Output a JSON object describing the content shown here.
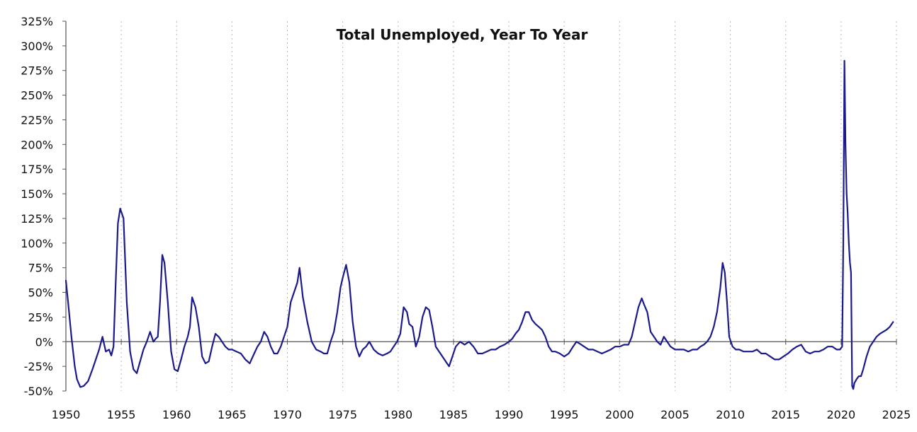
{
  "colors": {
    "series": "#1a1a8c",
    "axis": "#555555",
    "grid": "#b8b8b8",
    "text": "#111111"
  },
  "chart_data": {
    "type": "line",
    "title": "Total Unemployed, Year To Year",
    "xlabel": "",
    "ylabel": "",
    "xlim": [
      1950,
      2025
    ],
    "ylim": [
      -50,
      325
    ],
    "x_ticks": [
      1950,
      1955,
      1960,
      1965,
      1970,
      1975,
      1980,
      1985,
      1990,
      1995,
      2000,
      2005,
      2010,
      2015,
      2020,
      2025
    ],
    "x_tick_labels": [
      "1950",
      "1955",
      "1960",
      "1965",
      "1970",
      "1975",
      "1980",
      "1985",
      "1990",
      "1995",
      "2000",
      "2005",
      "2010",
      "2015",
      "2020",
      "2025"
    ],
    "y_ticks": [
      -50,
      -25,
      0,
      25,
      50,
      75,
      100,
      125,
      150,
      175,
      200,
      225,
      250,
      275,
      300,
      325
    ],
    "y_tick_labels": [
      "-50%",
      "-25%",
      "0%",
      "25%",
      "50%",
      "75%",
      "100%",
      "125%",
      "150%",
      "175%",
      "200%",
      "225%",
      "250%",
      "275%",
      "300%",
      "325%"
    ],
    "grid": {
      "vertical": true,
      "horizontal": false
    },
    "legend": "none",
    "series": [
      {
        "x": [
          1950.0,
          1950.2,
          1950.5,
          1950.8,
          1951.0,
          1951.3,
          1951.6,
          1952.0,
          1952.4,
          1952.7,
          1953.0,
          1953.3,
          1953.6,
          1953.9,
          1954.1,
          1954.3,
          1954.5,
          1954.7,
          1954.9,
          1955.2,
          1955.5,
          1955.8,
          1956.1,
          1956.4,
          1956.7,
          1957.0,
          1957.3,
          1957.6,
          1957.9,
          1958.1,
          1958.3,
          1958.5,
          1958.7,
          1958.9,
          1959.2,
          1959.5,
          1959.8,
          1960.1,
          1960.4,
          1960.7,
          1961.0,
          1961.2,
          1961.4,
          1961.7,
          1962.0,
          1962.3,
          1962.6,
          1962.9,
          1963.2,
          1963.5,
          1963.8,
          1964.1,
          1964.4,
          1964.7,
          1965.0,
          1965.4,
          1965.8,
          1966.2,
          1966.6,
          1967.0,
          1967.3,
          1967.6,
          1967.9,
          1968.2,
          1968.5,
          1968.8,
          1969.1,
          1969.4,
          1969.7,
          1970.0,
          1970.3,
          1970.6,
          1970.9,
          1971.1,
          1971.4,
          1971.8,
          1972.2,
          1972.6,
          1973.0,
          1973.3,
          1973.6,
          1973.9,
          1974.2,
          1974.5,
          1974.8,
          1975.0,
          1975.3,
          1975.6,
          1975.9,
          1976.2,
          1976.5,
          1976.8,
          1977.1,
          1977.4,
          1977.8,
          1978.2,
          1978.6,
          1979.0,
          1979.3,
          1979.6,
          1979.9,
          1980.2,
          1980.5,
          1980.8,
          1981.0,
          1981.3,
          1981.6,
          1981.9,
          1982.2,
          1982.5,
          1982.8,
          1983.1,
          1983.4,
          1983.7,
          1984.0,
          1984.3,
          1984.6,
          1984.9,
          1985.2,
          1985.6,
          1986.0,
          1986.4,
          1986.8,
          1987.2,
          1987.6,
          1988.0,
          1988.4,
          1988.8,
          1989.2,
          1989.6,
          1990.0,
          1990.3,
          1990.6,
          1990.9,
          1991.2,
          1991.5,
          1991.8,
          1992.1,
          1992.4,
          1992.7,
          1993.0,
          1993.3,
          1993.6,
          1993.9,
          1994.2,
          1994.6,
          1995.0,
          1995.4,
          1995.8,
          1996.1,
          1996.4,
          1996.8,
          1997.2,
          1997.6,
          1998.0,
          1998.4,
          1998.8,
          1999.2,
          1999.6,
          2000.0,
          2000.4,
          2000.8,
          2001.1,
          2001.4,
          2001.7,
          2002.0,
          2002.2,
          2002.5,
          2002.8,
          2003.1,
          2003.4,
          2003.7,
          2004.0,
          2004.3,
          2004.6,
          2005.0,
          2005.4,
          2005.8,
          2006.2,
          2006.6,
          2007.0,
          2007.3,
          2007.6,
          2007.9,
          2008.2,
          2008.5,
          2008.8,
          2009.1,
          2009.3,
          2009.5,
          2009.7,
          2009.9,
          2010.2,
          2010.5,
          2010.8,
          2011.2,
          2011.6,
          2012.0,
          2012.4,
          2012.8,
          2013.2,
          2013.6,
          2014.0,
          2014.4,
          2014.8,
          2015.2,
          2015.6,
          2016.0,
          2016.4,
          2016.8,
          2017.2,
          2017.6,
          2018.0,
          2018.4,
          2018.8,
          2019.2,
          2019.6,
          2019.9,
          2020.1,
          2020.2,
          2020.3,
          2020.4,
          2020.5,
          2020.6,
          2020.7,
          2020.8,
          2020.9,
          2021.0,
          2021.1,
          2021.2,
          2021.3,
          2021.4,
          2021.6,
          2021.8,
          2022.0,
          2022.3,
          2022.6,
          2022.9,
          2023.2,
          2023.5,
          2023.8,
          2024.1,
          2024.4,
          2024.7
        ],
        "values": [
          62,
          40,
          5,
          -25,
          -38,
          -46,
          -45,
          -40,
          -28,
          -18,
          -8,
          5,
          -10,
          -8,
          -14,
          -5,
          60,
          120,
          135,
          125,
          40,
          -10,
          -28,
          -32,
          -20,
          -8,
          0,
          10,
          0,
          3,
          5,
          40,
          88,
          80,
          40,
          -10,
          -28,
          -30,
          -18,
          -5,
          5,
          15,
          45,
          35,
          15,
          -15,
          -22,
          -20,
          -5,
          8,
          5,
          0,
          -5,
          -8,
          -8,
          -10,
          -12,
          -18,
          -22,
          -12,
          -5,
          0,
          10,
          5,
          -5,
          -12,
          -12,
          -5,
          5,
          15,
          40,
          50,
          60,
          75,
          45,
          20,
          0,
          -8,
          -10,
          -12,
          -12,
          0,
          10,
          30,
          55,
          65,
          78,
          60,
          20,
          -5,
          -15,
          -8,
          -5,
          0,
          -8,
          -12,
          -14,
          -12,
          -10,
          -5,
          0,
          8,
          35,
          30,
          18,
          15,
          -5,
          5,
          25,
          35,
          32,
          15,
          -5,
          -10,
          -15,
          -20,
          -25,
          -15,
          -5,
          0,
          -3,
          0,
          -5,
          -12,
          -12,
          -10,
          -8,
          -8,
          -5,
          -3,
          0,
          3,
          8,
          12,
          20,
          30,
          30,
          22,
          18,
          15,
          12,
          5,
          -5,
          -10,
          -10,
          -12,
          -15,
          -12,
          -5,
          0,
          -2,
          -5,
          -8,
          -8,
          -10,
          -12,
          -10,
          -8,
          -5,
          -5,
          -3,
          -3,
          5,
          20,
          35,
          44,
          38,
          30,
          10,
          5,
          0,
          -3,
          5,
          0,
          -5,
          -8,
          -8,
          -8,
          -10,
          -8,
          -8,
          -5,
          -3,
          0,
          5,
          15,
          30,
          55,
          80,
          70,
          40,
          5,
          -5,
          -8,
          -8,
          -10,
          -10,
          -10,
          -8,
          -12,
          -12,
          -15,
          -18,
          -18,
          -15,
          -12,
          -8,
          -5,
          -3,
          -10,
          -12,
          -10,
          -10,
          -8,
          -5,
          -5,
          -8,
          -8,
          -5,
          100,
          285,
          200,
          150,
          130,
          100,
          80,
          70,
          -45,
          -48,
          -42,
          -40,
          -38,
          -35,
          -35,
          -28,
          -15,
          -5,
          0,
          5,
          8,
          10,
          12,
          15,
          20
        ]
      }
    ]
  }
}
